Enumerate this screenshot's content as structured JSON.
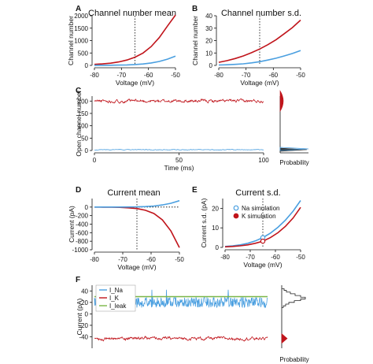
{
  "colors": {
    "red": "#c0141b",
    "blue": "#4a9fe0",
    "green": "#7ab648",
    "axis": "#111111"
  },
  "chart_data": [
    {
      "panel": "A",
      "type": "line",
      "title": "Channel number mean",
      "xlabel": "Voltage (mV)",
      "ylabel": "Channel number",
      "xlim": [
        -80,
        -50
      ],
      "ylim": [
        0,
        2000
      ],
      "xticks": [
        -80,
        -70,
        -60,
        -50
      ],
      "yticks": [
        0,
        500,
        1000,
        1500,
        2000
      ],
      "xticklabels": [
        "-80",
        "-70",
        "-60",
        "-50"
      ],
      "yticklabels": [
        "0",
        "500",
        "1000",
        "1500",
        "2000"
      ],
      "vline": -65,
      "x": [
        -80,
        -77,
        -74,
        -71,
        -68,
        -65,
        -62,
        -59,
        -56,
        -53,
        -50
      ],
      "series": [
        {
          "color": "red",
          "values": [
            40,
            60,
            90,
            140,
            215,
            330,
            500,
            760,
            1120,
            1580,
            2030
          ]
        },
        {
          "color": "blue",
          "values": [
            2,
            4,
            7,
            12,
            20,
            34,
            58,
            97,
            160,
            250,
            370
          ]
        }
      ]
    },
    {
      "panel": "B",
      "type": "line",
      "title": "Channel number s.d.",
      "xlabel": "Voltage (mV)",
      "ylabel": "Channel number",
      "xlim": [
        -80,
        -50
      ],
      "ylim": [
        0,
        40
      ],
      "xticks": [
        -80,
        -70,
        -60,
        -50
      ],
      "yticks": [
        0,
        10,
        20,
        30,
        40
      ],
      "xticklabels": [
        "-80",
        "-70",
        "-60",
        "-50"
      ],
      "yticklabels": [
        "0",
        "10",
        "20",
        "30",
        "40"
      ],
      "vline": -65,
      "x": [
        -80,
        -77,
        -74,
        -71,
        -68,
        -65,
        -62,
        -59,
        -56,
        -53,
        -50
      ],
      "series": [
        {
          "color": "red",
          "values": [
            2.5,
            3.8,
            5.5,
            7.6,
            10.2,
            13.2,
            16.7,
            20.7,
            25.5,
            30.5,
            36.5
          ]
        },
        {
          "color": "blue",
          "values": [
            0.3,
            0.5,
            0.8,
            1.3,
            2.0,
            3.0,
            4.3,
            5.8,
            7.6,
            9.6,
            12.0
          ]
        }
      ]
    },
    {
      "panel": "C",
      "type": "line",
      "xlabel": "Time (ms)",
      "ylabel": "Open channel number",
      "xlim": [
        0,
        100
      ],
      "ylim": [
        0,
        220
      ],
      "xticks": [
        0,
        50,
        100
      ],
      "yticks": [
        0,
        50,
        100,
        150,
        200
      ],
      "xticklabels": [
        "0",
        "50",
        "100"
      ],
      "yticklabels": [
        "0",
        "50",
        "100",
        "150",
        "200"
      ],
      "series": [
        {
          "color": "red",
          "mean": 200,
          "noise": 7,
          "kind": "noisy"
        },
        {
          "color": "blue",
          "mean": 3,
          "noise": 1.6,
          "kind": "noisy"
        }
      ],
      "side_xlabel": "Probability"
    },
    {
      "panel": "D",
      "type": "line",
      "title": "Current mean",
      "xlabel": "Voltage (mV)",
      "ylabel": "Current (pA)",
      "xlim": [
        -80,
        -50
      ],
      "ylim": [
        -1000,
        200
      ],
      "xticks": [
        -80,
        -70,
        -60,
        -50
      ],
      "yticks": [
        -1000,
        -800,
        -600,
        -400,
        -200,
        0
      ],
      "xticklabels": [
        "-80",
        "-70",
        "-60",
        "-50"
      ],
      "yticklabels": [
        "-1000",
        "-800",
        "-600",
        "-400",
        "-200",
        "0"
      ],
      "vline": -65,
      "hline_dotted": 0,
      "x": [
        -80,
        -77,
        -74,
        -71,
        -68,
        -65,
        -62,
        -59,
        -56,
        -53,
        -50
      ],
      "series": [
        {
          "color": "red",
          "values": [
            0,
            -1,
            -3,
            -7,
            -17,
            -35,
            -75,
            -150,
            -300,
            -560,
            -950
          ]
        },
        {
          "color": "blue",
          "values": [
            0,
            0,
            0,
            1,
            2,
            5,
            12,
            25,
            50,
            90,
            150
          ]
        }
      ]
    },
    {
      "panel": "E",
      "type": "line",
      "title": "Current s.d.",
      "xlabel": "Voltage (mV)",
      "ylabel": "Current s.d. (pA)",
      "xlim": [
        -80,
        -50
      ],
      "ylim": [
        0,
        25
      ],
      "xticks": [
        -80,
        -70,
        -60,
        -50
      ],
      "yticks": [
        0,
        10,
        20
      ],
      "xticklabels": [
        "-80",
        "-70",
        "-60",
        "-50"
      ],
      "yticklabels": [
        "0",
        "10",
        "20"
      ],
      "vline": -65,
      "x": [
        -80,
        -77,
        -74,
        -71,
        -68,
        -65,
        -62,
        -59,
        -56,
        -53,
        -50
      ],
      "series": [
        {
          "color": "blue",
          "values": [
            0.5,
            0.8,
            1.3,
            2.1,
            3.3,
            5.0,
            7.3,
            10.3,
            14.0,
            18.5,
            24.0
          ]
        },
        {
          "color": "red",
          "values": [
            0.3,
            0.5,
            0.8,
            1.3,
            2.1,
            3.2,
            5.0,
            7.5,
            10.8,
            15.0,
            20.5
          ]
        }
      ],
      "markers": [
        {
          "label": "Na simulation",
          "color": "blue",
          "x": -65,
          "y": 5.0,
          "err": 1.2
        },
        {
          "label": "K simulation",
          "color": "red",
          "x": -65,
          "y": 3.2,
          "err": 0.9
        }
      ],
      "legend": [
        "Na simulation",
        "K simulation"
      ]
    },
    {
      "panel": "F",
      "type": "line",
      "xlabel": "",
      "ylabel": "Current (pA)",
      "ylim": [
        -60,
        50
      ],
      "yticks": [
        -40,
        -20,
        0,
        20,
        40
      ],
      "yticklabels": [
        "-40",
        "-20",
        "0",
        "20",
        "40"
      ],
      "series": [
        {
          "name": "I_Na",
          "color": "blue",
          "mean": 20,
          "noise": 9,
          "kind": "spiky"
        },
        {
          "name": "I_K",
          "color": "red",
          "mean": -43,
          "noise": 2.2,
          "kind": "noisy"
        },
        {
          "name": "I_leak",
          "color": "green",
          "mean": 30,
          "noise": 0,
          "kind": "flat"
        }
      ],
      "legend": [
        "I_Na",
        "I_K",
        "I_leak"
      ],
      "side_xlabel": "Probability"
    }
  ]
}
